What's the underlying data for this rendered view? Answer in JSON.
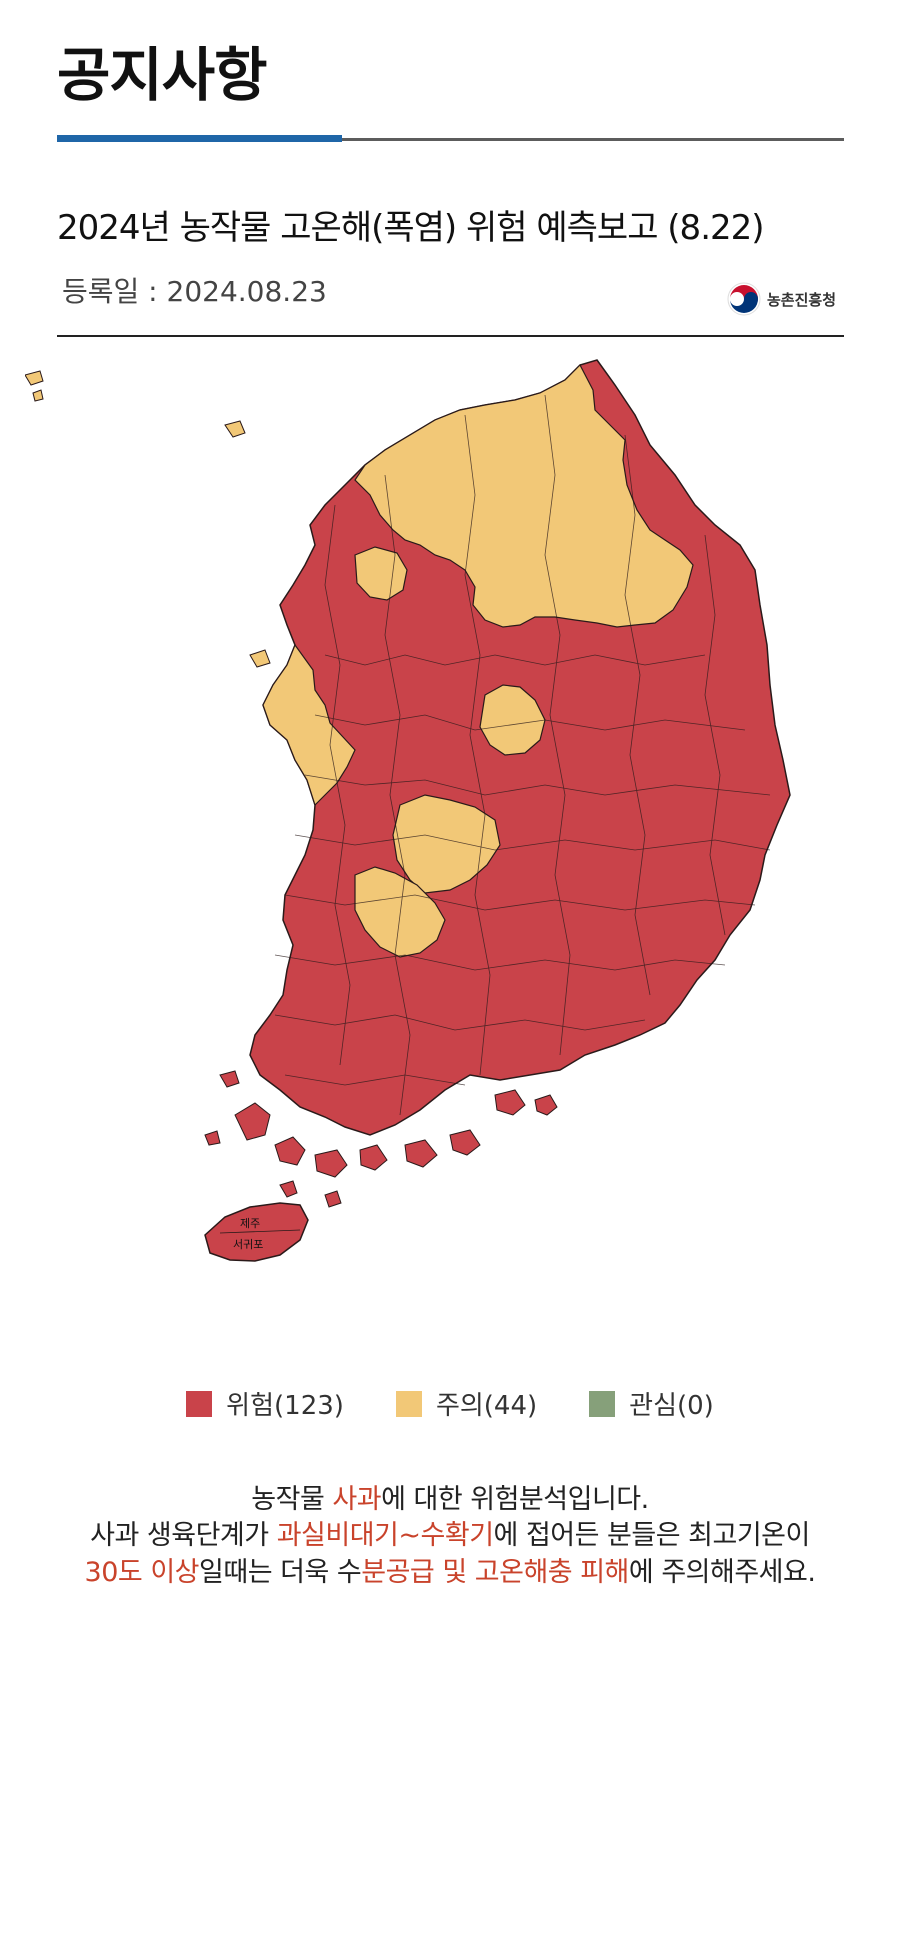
{
  "header": {
    "title": "공지사항"
  },
  "notice": {
    "title": "2024년 농작물 고온해(폭염) 위험 예측보고 (8.22)",
    "registered": "등록일 : 2024.08.23",
    "org_name": "농촌진흥청"
  },
  "map": {
    "regions": {
      "jeju": "제주",
      "seogwipo": "서귀포"
    }
  },
  "legend": [
    {
      "label": "위험(123)",
      "color": "#c9434a"
    },
    {
      "label": "주의(44)",
      "color": "#f2c877"
    },
    {
      "label": "관심(0)",
      "color": "#86a07a"
    }
  ],
  "message": {
    "line1_a": "농작물 ",
    "line1_hl": "사과",
    "line1_b": "에 대한 위험분석입니다.",
    "line2_a": "사과 생육단계가 ",
    "line2_hl": "과실비대기~수확기",
    "line2_b": "에 접어든 분들은 최고기온이",
    "line3_hl1": "30도 이상",
    "line3_a": "일때는 더욱 수",
    "line3_hl2": "분공급 및 고온해충 피해",
    "line3_b": "에 주의해주세요."
  }
}
